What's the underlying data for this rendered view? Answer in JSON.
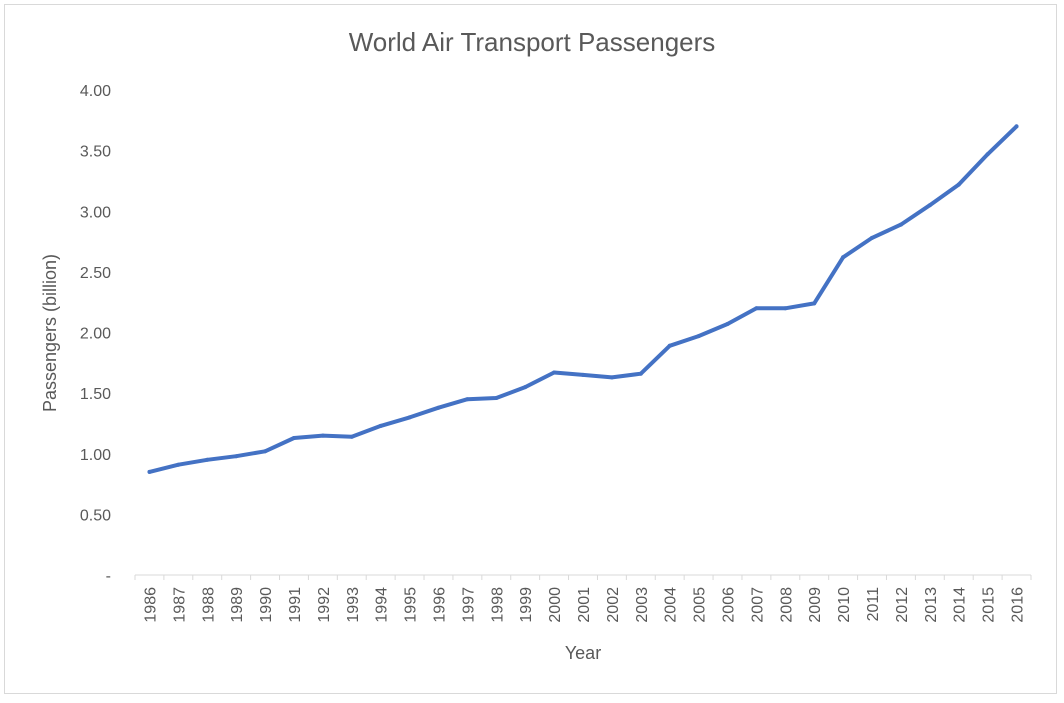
{
  "chart_data": {
    "type": "line",
    "title": "World Air Transport Passengers",
    "xlabel": "Year",
    "ylabel": "Passengers (billion)",
    "ylim": [
      0,
      4
    ],
    "y_ticks": [
      "-",
      "0.50",
      "1.00",
      "1.50",
      "2.00",
      "2.50",
      "3.00",
      "3.50",
      "4.00"
    ],
    "y_tick_values": [
      0,
      0.5,
      1,
      1.5,
      2,
      2.5,
      3,
      3.5,
      4
    ],
    "grid": false,
    "legend": "none",
    "categories": [
      "1986",
      "1987",
      "1988",
      "1989",
      "1990",
      "1991",
      "1992",
      "1993",
      "1994",
      "1995",
      "1996",
      "1997",
      "1998",
      "1999",
      "2000",
      "2001",
      "2002",
      "2003",
      "2004",
      "2005",
      "2006",
      "2007",
      "2008",
      "2009",
      "2010",
      "2011",
      "2012",
      "2013",
      "2014",
      "2015",
      "2016"
    ],
    "series": [
      {
        "name": "Passengers (billion)",
        "color": "#4472c4",
        "values": [
          0.85,
          0.91,
          0.95,
          0.98,
          1.02,
          1.13,
          1.15,
          1.14,
          1.23,
          1.3,
          1.38,
          1.45,
          1.46,
          1.55,
          1.67,
          1.65,
          1.63,
          1.66,
          1.89,
          1.97,
          2.07,
          2.2,
          2.2,
          2.24,
          2.62,
          2.78,
          2.89,
          3.05,
          3.22,
          3.47,
          3.7
        ]
      }
    ]
  }
}
